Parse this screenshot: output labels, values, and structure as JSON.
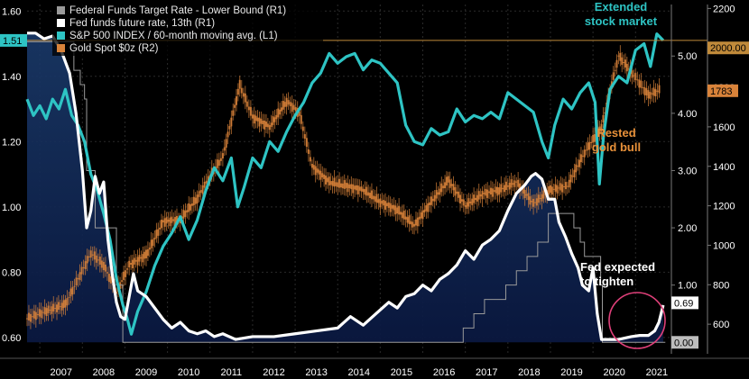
{
  "chart_data": {
    "type": "line",
    "title": "",
    "grid": true,
    "legend_position": "top-left",
    "x_axis": {
      "labels": [
        "2007",
        "2008",
        "2009",
        "2010",
        "2011",
        "2012",
        "2013",
        "2014",
        "2015",
        "2016",
        "2017",
        "2018",
        "2019",
        "2020",
        "2021"
      ],
      "range": [
        2006.7,
        2021.8
      ]
    },
    "axes": {
      "L1": {
        "range": [
          0.55,
          1.62
        ],
        "ticks": [
          "0.60",
          "0.80",
          "1.00",
          "1.20",
          "1.40",
          "1.60"
        ],
        "side": "left"
      },
      "R1": {
        "range": [
          -0.2,
          5.9
        ],
        "ticks": [
          "0.00",
          "1.00",
          "2.00",
          "3.00",
          "4.00",
          "5.00"
        ],
        "side": "right-inner"
      },
      "R2": {
        "range": [
          450,
          2220
        ],
        "ticks": [
          "600",
          "800",
          "1000",
          "1200",
          "1400",
          "1600",
          "1800",
          "2000",
          "2200"
        ],
        "side": "right-outer"
      }
    },
    "series": [
      {
        "name": "Federal Funds Target Rate - Lower Bound (R1)",
        "axis": "R1",
        "color": "#9a9a9a",
        "style": "step",
        "x": [
          2006.7,
          2007.7,
          2007.8,
          2007.95,
          2008.05,
          2008.1,
          2008.3,
          2008.8,
          2008.95,
          2015.95,
          2016.95,
          2017.2,
          2017.45,
          2017.95,
          2018.2,
          2018.45,
          2018.7,
          2018.95,
          2019.55,
          2019.7,
          2019.8,
          2020.18,
          2020.22,
          2021.7
        ],
        "y": [
          5.25,
          5.25,
          4.75,
          4.5,
          4.25,
          3.0,
          2.0,
          1.0,
          0.0,
          0.0,
          0.25,
          0.5,
          0.75,
          1.0,
          1.25,
          1.5,
          1.75,
          2.25,
          2.0,
          1.75,
          1.5,
          1.0,
          0.0,
          0.0
        ]
      },
      {
        "name": "Fed funds future rate, 13th (R1)",
        "axis": "R1",
        "color": "#ffffff",
        "style": "line",
        "x": [
          2006.7,
          2006.9,
          2007.1,
          2007.3,
          2007.5,
          2007.7,
          2007.85,
          2008.0,
          2008.1,
          2008.2,
          2008.3,
          2008.4,
          2008.5,
          2008.6,
          2008.7,
          2008.8,
          2008.9,
          2009.0,
          2009.1,
          2009.2,
          2009.3,
          2009.5,
          2009.7,
          2009.9,
          2010.1,
          2010.3,
          2010.5,
          2010.7,
          2010.9,
          2011.1,
          2011.3,
          2011.6,
          2012.0,
          2012.5,
          2013.0,
          2013.5,
          2014.0,
          2014.3,
          2014.6,
          2014.9,
          2015.2,
          2015.4,
          2015.6,
          2015.8,
          2016.0,
          2016.2,
          2016.4,
          2016.6,
          2016.8,
          2017.0,
          2017.2,
          2017.4,
          2017.6,
          2017.8,
          2018.0,
          2018.2,
          2018.4,
          2018.55,
          2018.65,
          2018.8,
          2018.95,
          2019.1,
          2019.2,
          2019.35,
          2019.5,
          2019.65,
          2019.75,
          2019.9,
          2020.0,
          2020.1,
          2020.2,
          2020.3,
          2020.6,
          2020.9,
          2021.1,
          2021.3,
          2021.45,
          2021.55,
          2021.65
        ],
        "y": [
          5.4,
          5.4,
          5.3,
          5.35,
          5.1,
          4.7,
          4.0,
          3.0,
          2.0,
          2.3,
          2.9,
          2.6,
          2.8,
          1.8,
          1.2,
          0.7,
          0.45,
          0.4,
          0.8,
          1.2,
          0.9,
          0.8,
          0.6,
          0.4,
          0.25,
          0.35,
          0.2,
          0.15,
          0.2,
          0.1,
          0.15,
          0.05,
          0.1,
          0.1,
          0.15,
          0.2,
          0.25,
          0.45,
          0.3,
          0.5,
          0.7,
          0.6,
          0.8,
          0.85,
          1.0,
          0.9,
          1.1,
          1.2,
          1.35,
          1.6,
          1.45,
          1.7,
          1.8,
          1.95,
          2.3,
          2.6,
          2.75,
          2.9,
          2.95,
          2.85,
          2.5,
          2.5,
          2.1,
          1.85,
          1.55,
          1.3,
          1.0,
          0.9,
          1.3,
          0.5,
          0.05,
          0.05,
          0.05,
          0.1,
          0.12,
          0.12,
          0.2,
          0.35,
          0.65
        ]
      },
      {
        "name": "S&P 500 INDEX / 60-month moving avg. (L1)",
        "axis": "L1",
        "color": "#2ec4c4",
        "style": "line",
        "x": [
          2006.7,
          2006.85,
          2007.0,
          2007.15,
          2007.3,
          2007.45,
          2007.6,
          2007.75,
          2007.9,
          2008.05,
          2008.2,
          2008.35,
          2008.5,
          2008.65,
          2008.8,
          2008.95,
          2009.05,
          2009.15,
          2009.3,
          2009.5,
          2009.7,
          2009.9,
          2010.1,
          2010.3,
          2010.5,
          2010.7,
          2010.9,
          2011.1,
          2011.3,
          2011.5,
          2011.65,
          2011.8,
          2012.0,
          2012.2,
          2012.4,
          2012.6,
          2012.8,
          2013.0,
          2013.2,
          2013.4,
          2013.6,
          2013.8,
          2014.0,
          2014.2,
          2014.4,
          2014.6,
          2014.8,
          2015.0,
          2015.2,
          2015.4,
          2015.6,
          2015.8,
          2016.0,
          2016.2,
          2016.4,
          2016.6,
          2016.8,
          2017.0,
          2017.2,
          2017.4,
          2017.6,
          2017.8,
          2018.0,
          2018.2,
          2018.4,
          2018.6,
          2018.8,
          2018.95,
          2019.1,
          2019.3,
          2019.5,
          2019.7,
          2019.9,
          2020.05,
          2020.15,
          2020.25,
          2020.4,
          2020.6,
          2020.8,
          2021.0,
          2021.2,
          2021.35,
          2021.5,
          2021.65
        ],
        "y": [
          1.33,
          1.28,
          1.31,
          1.27,
          1.33,
          1.3,
          1.36,
          1.28,
          1.25,
          1.2,
          1.1,
          1.05,
          0.98,
          0.9,
          0.78,
          0.7,
          0.66,
          0.61,
          0.68,
          0.74,
          0.82,
          0.88,
          0.92,
          0.97,
          0.9,
          0.96,
          1.05,
          1.12,
          1.08,
          1.15,
          1.0,
          1.06,
          1.15,
          1.12,
          1.2,
          1.17,
          1.23,
          1.28,
          1.32,
          1.38,
          1.41,
          1.47,
          1.44,
          1.46,
          1.47,
          1.42,
          1.45,
          1.44,
          1.41,
          1.38,
          1.25,
          1.2,
          1.19,
          1.24,
          1.22,
          1.23,
          1.3,
          1.26,
          1.28,
          1.27,
          1.29,
          1.27,
          1.35,
          1.33,
          1.31,
          1.29,
          1.2,
          1.15,
          1.25,
          1.33,
          1.3,
          1.35,
          1.38,
          1.32,
          1.07,
          1.22,
          1.36,
          1.4,
          1.38,
          1.48,
          1.5,
          1.43,
          1.53,
          1.51
        ]
      },
      {
        "name": "Gold Spot $0z (R2)",
        "axis": "R2",
        "color": "#d9833a",
        "style": "candles",
        "x": [
          2006.7,
          2007.2,
          2007.6,
          2007.9,
          2008.2,
          2008.5,
          2008.8,
          2009.1,
          2009.5,
          2009.9,
          2010.3,
          2010.7,
          2011.0,
          2011.3,
          2011.7,
          2012.0,
          2012.4,
          2012.8,
          2013.1,
          2013.4,
          2013.8,
          2014.2,
          2014.6,
          2015.0,
          2015.4,
          2015.8,
          2016.2,
          2016.6,
          2017.0,
          2017.4,
          2017.8,
          2018.2,
          2018.6,
          2019.0,
          2019.4,
          2019.8,
          2020.2,
          2020.6,
          2021.0,
          2021.3,
          2021.6
        ],
        "y": [
          630,
          670,
          700,
          830,
          960,
          900,
          760,
          900,
          950,
          1120,
          1130,
          1240,
          1350,
          1450,
          1810,
          1650,
          1600,
          1730,
          1670,
          1400,
          1320,
          1300,
          1280,
          1220,
          1180,
          1100,
          1220,
          1330,
          1200,
          1260,
          1280,
          1320,
          1210,
          1280,
          1300,
          1470,
          1600,
          1960,
          1850,
          1760,
          1790
        ]
      }
    ],
    "value_labels": [
      {
        "text": "1.51",
        "axis": "L1"
      },
      {
        "text": "2000.00",
        "axis": "R2"
      },
      {
        "text": "1783",
        "axis": "R2"
      },
      {
        "text": "0.69",
        "axis": "R1"
      },
      {
        "text": "0.00",
        "axis": "R1"
      }
    ],
    "reference_line": {
      "value": 1.51,
      "axis": "L1",
      "color": "#c08a3a"
    },
    "annotations": [
      {
        "lines": [
          "Extended",
          "stock market"
        ],
        "color": "#2ec4c4"
      },
      {
        "lines": [
          "Rested",
          "gold bull"
        ],
        "color": "#e8913a"
      },
      {
        "lines": [
          "Fed expected",
          "to tighten"
        ],
        "color": "#ffffff"
      }
    ],
    "highlight_circle_color": "#e0407a"
  }
}
